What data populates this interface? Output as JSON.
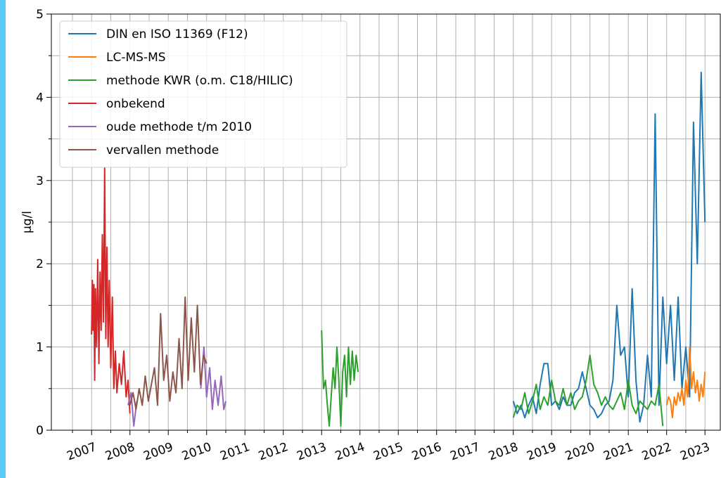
{
  "chart_data": {
    "type": "line",
    "ylabel": "µg/l",
    "xlim": [
      2005.95,
      2023.4
    ],
    "ylim": [
      0,
      5
    ],
    "xticks": [
      2007,
      2008,
      2009,
      2010,
      2011,
      2012,
      2013,
      2014,
      2015,
      2016,
      2017,
      2018,
      2019,
      2020,
      2021,
      2022,
      2023
    ],
    "x_minor_ticks": [
      2006.5,
      2007.5,
      2008.5,
      2009.5,
      2010.5,
      2011.5,
      2012.5,
      2013.5,
      2014.5,
      2015.5,
      2016.5,
      2017.5,
      2018.5,
      2019.5,
      2020.5,
      2021.5,
      2022.5
    ],
    "yticks": [
      0,
      1,
      2,
      3,
      4,
      5
    ],
    "y_minor_ticks": [
      0.5,
      1.5,
      2.5,
      3.5,
      4.5
    ],
    "grid": true,
    "legend": "upper left",
    "series": [
      {
        "name": "DIN en ISO 11369 (F12)",
        "color": "#1f77b4",
        "x": [
          2018.0,
          2018.1,
          2018.2,
          2018.3,
          2018.4,
          2018.5,
          2018.6,
          2018.7,
          2018.8,
          2018.9,
          2019.0,
          2019.1,
          2019.2,
          2019.3,
          2019.4,
          2019.5,
          2019.6,
          2019.7,
          2019.8,
          2019.9,
          2020.0,
          2020.1,
          2020.2,
          2020.3,
          2020.4,
          2020.5,
          2020.6,
          2020.7,
          2020.8,
          2020.9,
          2021.0,
          2021.1,
          2021.2,
          2021.3,
          2021.4,
          2021.5,
          2021.6,
          2021.7,
          2021.8,
          2021.9,
          2022.0,
          2022.1,
          2022.2,
          2022.3,
          2022.4,
          2022.5,
          2022.6,
          2022.7,
          2022.8,
          2022.9,
          2023.0
        ],
        "values": [
          0.35,
          0.2,
          0.3,
          0.15,
          0.3,
          0.4,
          0.2,
          0.55,
          0.8,
          0.8,
          0.3,
          0.35,
          0.25,
          0.4,
          0.3,
          0.3,
          0.45,
          0.5,
          0.7,
          0.5,
          0.3,
          0.25,
          0.15,
          0.2,
          0.3,
          0.35,
          0.6,
          1.5,
          0.9,
          1.0,
          0.4,
          1.7,
          0.6,
          0.1,
          0.3,
          0.9,
          0.4,
          3.8,
          0.3,
          1.6,
          0.8,
          1.5,
          0.6,
          1.6,
          0.5,
          1.0,
          0.4,
          3.7,
          2.0,
          4.3,
          2.5
        ]
      },
      {
        "name": "LC-MS-MS",
        "color": "#ff7f0e",
        "x": [
          2022.0,
          2022.05,
          2022.1,
          2022.15,
          2022.2,
          2022.25,
          2022.3,
          2022.35,
          2022.4,
          2022.45,
          2022.5,
          2022.55,
          2022.6,
          2022.65,
          2022.7,
          2022.75,
          2022.8,
          2022.85,
          2022.9,
          2022.95,
          2023.0
        ],
        "values": [
          0.3,
          0.4,
          0.35,
          0.15,
          0.4,
          0.3,
          0.45,
          0.35,
          0.5,
          0.3,
          0.6,
          0.4,
          1.0,
          0.5,
          0.7,
          0.45,
          0.6,
          0.35,
          0.55,
          0.4,
          0.7
        ]
      },
      {
        "name": "methode KWR (o.m. C18/HILIC)",
        "color": "#2ca02c",
        "x": [
          2013.0,
          2013.05,
          2013.1,
          2013.15,
          2013.2,
          2013.25,
          2013.3,
          2013.35,
          2013.4,
          2013.45,
          2013.5,
          2013.55,
          2013.6,
          2013.65,
          2013.7,
          2013.75,
          2013.8,
          2013.85,
          2013.9,
          2013.95,
          2016.0,
          2018.0,
          2018.1,
          2018.2,
          2018.3,
          2018.4,
          2018.5,
          2018.6,
          2018.7,
          2018.8,
          2018.9,
          2019.0,
          2019.1,
          2019.2,
          2019.3,
          2019.4,
          2019.5,
          2019.6,
          2019.7,
          2019.8,
          2019.9,
          2020.0,
          2020.1,
          2020.2,
          2020.3,
          2020.4,
          2020.5,
          2020.6,
          2020.7,
          2020.8,
          2020.9,
          2021.0,
          2021.1,
          2021.2,
          2021.3,
          2021.4,
          2021.5,
          2021.6,
          2021.7,
          2021.8,
          2021.9
        ],
        "values": [
          1.2,
          0.5,
          0.6,
          0.3,
          0.05,
          0.4,
          0.75,
          0.5,
          1.0,
          0.6,
          0.05,
          0.7,
          0.9,
          0.4,
          1.0,
          0.55,
          0.95,
          0.6,
          0.9,
          0.7,
          null,
          0.15,
          0.3,
          0.25,
          0.45,
          0.2,
          0.35,
          0.55,
          0.25,
          0.4,
          0.3,
          0.6,
          0.35,
          0.3,
          0.5,
          0.3,
          0.45,
          0.25,
          0.35,
          0.4,
          0.6,
          0.9,
          0.55,
          0.45,
          0.3,
          0.4,
          0.3,
          0.25,
          0.35,
          0.45,
          0.25,
          0.6,
          0.3,
          0.2,
          0.35,
          0.3,
          0.25,
          0.35,
          0.3,
          0.55,
          0.05
        ]
      },
      {
        "name": "onbekend",
        "color": "#d62728",
        "x": [
          2007.0,
          2007.02,
          2007.04,
          2007.06,
          2007.08,
          2007.1,
          2007.13,
          2007.16,
          2007.19,
          2007.22,
          2007.25,
          2007.28,
          2007.31,
          2007.34,
          2007.37,
          2007.4,
          2007.43,
          2007.46,
          2007.5,
          2007.54,
          2007.58,
          2007.62,
          2007.66,
          2007.72,
          2007.78,
          2007.84,
          2007.9,
          2007.95,
          2008.0
        ],
        "values": [
          1.15,
          1.8,
          1.2,
          1.75,
          0.6,
          1.7,
          1.0,
          2.05,
          0.8,
          1.9,
          1.2,
          2.35,
          1.3,
          3.15,
          1.1,
          2.2,
          1.0,
          1.8,
          0.75,
          1.6,
          0.5,
          0.95,
          0.45,
          0.8,
          0.55,
          0.95,
          0.4,
          0.6,
          0.2
        ]
      },
      {
        "name": "oude methode t/m 2010",
        "color": "#9467bd",
        "x": [
          2007.95,
          2008.03,
          2008.1,
          2008.18,
          2009.0,
          2009.85,
          2009.93,
          2010.0,
          2010.08,
          2010.15,
          2010.22,
          2010.3,
          2010.38,
          2010.45,
          2010.5
        ],
        "values": [
          0.3,
          0.45,
          0.05,
          0.35,
          null,
          0.5,
          1.0,
          0.4,
          0.75,
          0.25,
          0.6,
          0.3,
          0.65,
          0.25,
          0.35
        ]
      },
      {
        "name": "vervallen methode",
        "color": "#8c564b",
        "x": [
          2008.0,
          2008.08,
          2008.16,
          2008.24,
          2008.32,
          2008.4,
          2008.48,
          2008.56,
          2008.64,
          2008.72,
          2008.8,
          2008.88,
          2008.96,
          2009.04,
          2009.12,
          2009.2,
          2009.28,
          2009.36,
          2009.44,
          2009.52,
          2009.6,
          2009.68,
          2009.76,
          2009.84,
          2009.92,
          2010.0
        ],
        "values": [
          0.3,
          0.45,
          0.25,
          0.5,
          0.3,
          0.65,
          0.35,
          0.55,
          0.75,
          0.3,
          1.4,
          0.6,
          0.9,
          0.35,
          0.7,
          0.45,
          1.1,
          0.5,
          1.6,
          0.6,
          1.35,
          0.7,
          1.5,
          0.55,
          0.9,
          0.8
        ]
      }
    ]
  }
}
